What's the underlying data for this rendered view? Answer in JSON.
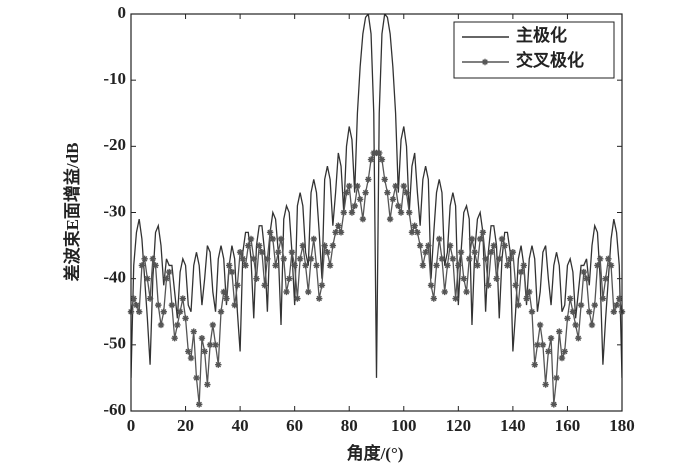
{
  "chart_data": {
    "type": "line",
    "x_label": "角度/(°)",
    "y_label": "差波束E面增益/dB",
    "x": [
      0,
      1,
      2,
      3,
      4,
      5,
      6,
      7,
      8,
      9,
      10,
      11,
      12,
      13,
      14,
      15,
      16,
      17,
      18,
      19,
      20,
      21,
      22,
      23,
      24,
      25,
      26,
      27,
      28,
      29,
      30,
      31,
      32,
      33,
      34,
      35,
      36,
      37,
      38,
      39,
      40,
      41,
      42,
      43,
      44,
      45,
      46,
      47,
      48,
      49,
      50,
      51,
      52,
      53,
      54,
      55,
      56,
      57,
      58,
      59,
      60,
      61,
      62,
      63,
      64,
      65,
      66,
      67,
      68,
      69,
      70,
      71,
      72,
      73,
      74,
      75,
      76,
      77,
      78,
      79,
      80,
      81,
      82,
      83,
      84,
      85,
      86,
      87,
      88,
      89,
      90,
      91,
      92,
      93,
      94,
      95,
      96,
      97,
      98,
      99,
      100,
      101,
      102,
      103,
      104,
      105,
      106,
      107,
      108,
      109,
      110,
      111,
      112,
      113,
      114,
      115,
      116,
      117,
      118,
      119,
      120,
      121,
      122,
      123,
      124,
      125,
      126,
      127,
      128,
      129,
      130,
      131,
      132,
      133,
      134,
      135,
      136,
      137,
      138,
      139,
      140,
      141,
      142,
      143,
      144,
      145,
      146,
      147,
      148,
      149,
      150,
      151,
      152,
      153,
      154,
      155,
      156,
      157,
      158,
      159,
      160,
      161,
      162,
      163,
      164,
      165,
      166,
      167,
      168,
      169,
      170,
      171,
      172,
      173,
      174,
      175,
      176,
      177,
      178,
      179,
      180
    ],
    "series": [
      {
        "name": "主极化",
        "color": "#333333",
        "marker": "none",
        "values": [
          -55,
          -38,
          -33,
          -31,
          -34,
          -40,
          -46,
          -53,
          -40,
          -33,
          -32,
          -35,
          -41,
          -37,
          -38,
          -38,
          -42,
          -46,
          -39,
          -37,
          -38,
          -44,
          -45,
          -38,
          -36,
          -38,
          -44,
          -40,
          -35,
          -36,
          -42,
          -45,
          -37,
          -35,
          -37,
          -44,
          -38,
          -35,
          -37,
          -45,
          -51,
          -36,
          -33,
          -33,
          -37,
          -46,
          -35,
          -32,
          -32,
          -36,
          -45,
          -33,
          -30,
          -31,
          -36,
          -47,
          -31,
          -29,
          -30,
          -36,
          -44,
          -29,
          -27,
          -29,
          -36,
          -38,
          -27,
          -25,
          -27,
          -33,
          -40,
          -25,
          -23,
          -25,
          -32,
          -27,
          -21,
          -23,
          -30,
          -20,
          -17,
          -19,
          -27,
          -15,
          -8,
          -3,
          -0.5,
          0,
          -3,
          -15,
          -55,
          -15,
          -3,
          0,
          -0.5,
          -3,
          -8,
          -15,
          -27,
          -19,
          -17,
          -20,
          -30,
          -23,
          -21,
          -27,
          -32,
          -25,
          -23,
          -25,
          -40,
          -33,
          -27,
          -25,
          -27,
          -38,
          -36,
          -29,
          -27,
          -29,
          -44,
          -36,
          -30,
          -29,
          -31,
          -47,
          -36,
          -31,
          -30,
          -33,
          -45,
          -36,
          -32,
          -32,
          -35,
          -46,
          -37,
          -33,
          -33,
          -36,
          -51,
          -45,
          -37,
          -35,
          -38,
          -44,
          -37,
          -35,
          -37,
          -45,
          -42,
          -36,
          -35,
          -40,
          -44,
          -38,
          -36,
          -38,
          -45,
          -44,
          -38,
          -37,
          -39,
          -46,
          -42,
          -38,
          -38,
          -37,
          -41,
          -35,
          -32,
          -33,
          -40,
          -53,
          -46,
          -40,
          -34,
          -31,
          -33,
          -38,
          -55
        ]
      },
      {
        "name": "交叉极化",
        "color": "#555555",
        "marker": "star",
        "values": [
          -45,
          -43,
          -44,
          -45,
          -38,
          -37,
          -40,
          -43,
          -37,
          -38,
          -44,
          -47,
          -45,
          -40,
          -39,
          -44,
          -49,
          -47,
          -45,
          -43,
          -46,
          -51,
          -52,
          -48,
          -55,
          -59,
          -49,
          -51,
          -56,
          -50,
          -47,
          -50,
          -53,
          -45,
          -42,
          -43,
          -38,
          -39,
          -44,
          -41,
          -36,
          -37,
          -38,
          -35,
          -34,
          -37,
          -40,
          -35,
          -36,
          -41,
          -37,
          -33,
          -34,
          -38,
          -36,
          -34,
          -37,
          -42,
          -40,
          -36,
          -38,
          -43,
          -37,
          -35,
          -38,
          -42,
          -37,
          -34,
          -38,
          -43,
          -41,
          -35,
          -36,
          -38,
          -35,
          -33,
          -32,
          -33,
          -30,
          -27,
          -26,
          -30,
          -29,
          -26,
          -28,
          -31,
          -27,
          -25,
          -22,
          -21,
          -21,
          -21,
          -22,
          -25,
          -27,
          -31,
          -28,
          -26,
          -29,
          -30,
          -26,
          -27,
          -30,
          -33,
          -32,
          -33,
          -35,
          -38,
          -36,
          -35,
          -41,
          -43,
          -38,
          -34,
          -37,
          -42,
          -38,
          -35,
          -37,
          -43,
          -38,
          -36,
          -40,
          -42,
          -37,
          -34,
          -36,
          -38,
          -34,
          -33,
          -37,
          -41,
          -36,
          -35,
          -40,
          -37,
          -34,
          -35,
          -38,
          -37,
          -36,
          -41,
          -44,
          -39,
          -38,
          -43,
          -42,
          -45,
          -53,
          -50,
          -47,
          -50,
          -56,
          -51,
          -49,
          -59,
          -55,
          -48,
          -52,
          -51,
          -46,
          -43,
          -45,
          -47,
          -49,
          -44,
          -39,
          -40,
          -45,
          -47,
          -44,
          -38,
          -37,
          -43,
          -40,
          -37,
          -38,
          -45,
          -44,
          -43,
          -45
        ]
      }
    ],
    "xlim": [
      0,
      180
    ],
    "ylim": [
      -60,
      0
    ],
    "xticks": [
      0,
      20,
      40,
      60,
      80,
      100,
      120,
      140,
      160,
      180
    ],
    "yticks": [
      0,
      -10,
      -20,
      -30,
      -40,
      -50,
      -60
    ],
    "legend": "upper right",
    "grid": false
  }
}
